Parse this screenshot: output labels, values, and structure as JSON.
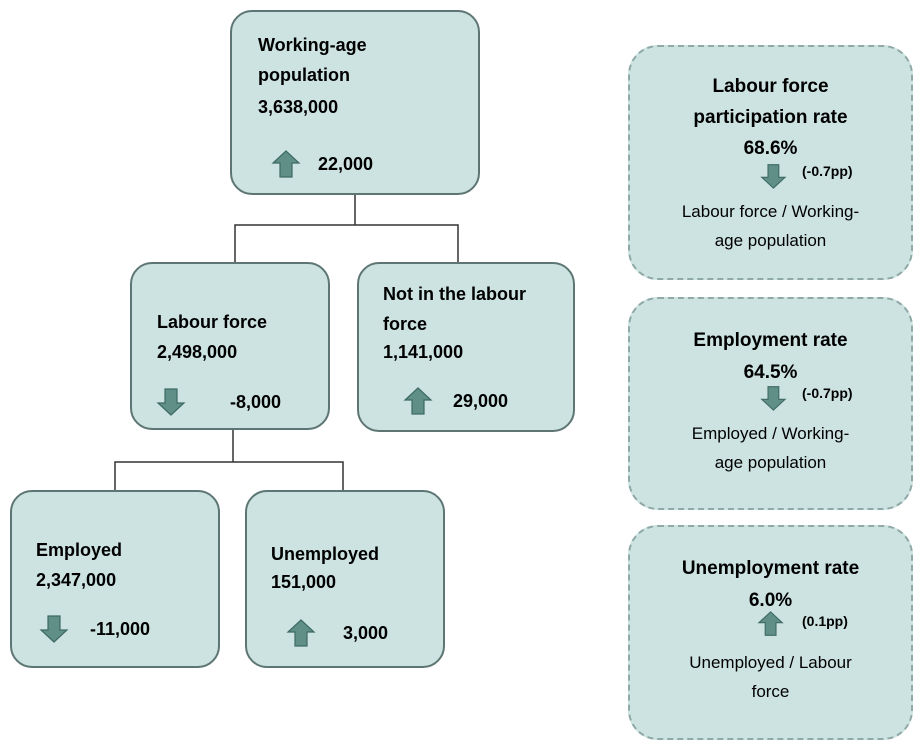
{
  "nodes": [
    {
      "label": "Working-age population",
      "value": "3,638,000",
      "change": "22,000",
      "direction": "up"
    },
    {
      "label": "Labour force",
      "value": "2,498,000",
      "change": "-8,000",
      "direction": "down"
    },
    {
      "label": "Not in the labour force",
      "value": "1,141,000",
      "change": "29,000",
      "direction": "up"
    },
    {
      "label": "Employed",
      "value": "2,347,000",
      "change": "-11,000",
      "direction": "down"
    },
    {
      "label": "Unemployed",
      "value": "151,000",
      "change": "3,000",
      "direction": "up"
    }
  ],
  "rates": [
    {
      "title": "Labour force participation rate",
      "value": "68.6%",
      "change": "(-0.7pp)",
      "direction": "down",
      "formula": "Labour force / Working-age population"
    },
    {
      "title": "Employment rate",
      "value": "64.5%",
      "change": "(-0.7pp)",
      "direction": "down",
      "formula": "Employed / Working-age population"
    },
    {
      "title": "Unemployment rate",
      "value": "6.0%",
      "change": "(0.1pp)",
      "direction": "up",
      "formula": "Unemployed / Labour force"
    }
  ]
}
